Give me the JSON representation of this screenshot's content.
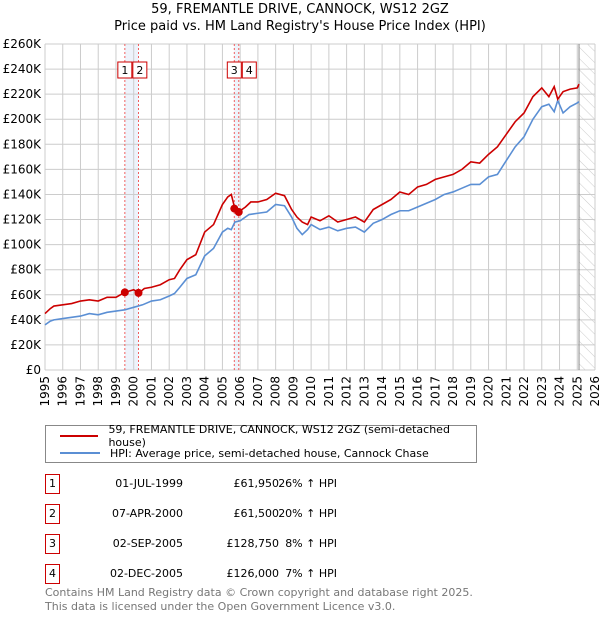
{
  "title": "59, FREMANTLE DRIVE, CANNOCK, WS12 2GZ",
  "subtitle": "Price paid vs. HM Land Registry's House Price Index (HPI)",
  "chart_data": {
    "type": "line",
    "title": "59, FREMANTLE DRIVE, CANNOCK, WS12 2GZ — Price paid vs. HM Land Registry's House Price Index (HPI)",
    "xlim": [
      1995,
      2026
    ],
    "ylim": [
      0,
      260000
    ],
    "x_ticks": [
      "1995",
      "1996",
      "1997",
      "1998",
      "1999",
      "2000",
      "2001",
      "2002",
      "2003",
      "2004",
      "2005",
      "2006",
      "2007",
      "2008",
      "2009",
      "2010",
      "2011",
      "2012",
      "2013",
      "2014",
      "2015",
      "2016",
      "2017",
      "2018",
      "2019",
      "2020",
      "2021",
      "2022",
      "2023",
      "2024",
      "2025",
      "2026"
    ],
    "y_ticks": [
      "£0",
      "£20K",
      "£40K",
      "£60K",
      "£80K",
      "£100K",
      "£120K",
      "£140K",
      "£160K",
      "£180K",
      "£200K",
      "£220K",
      "£240K",
      "£260K"
    ],
    "grid": true,
    "forecast_from": 2025.1,
    "series": [
      {
        "name": "59, FREMANTLE DRIVE, CANNOCK, WS12 2GZ (semi-detached house)",
        "color": "#cc0000",
        "x": [
          1995,
          1995.3,
          1995.5,
          1996,
          1996.5,
          1997,
          1997.5,
          1998,
          1998.5,
          1999,
          1999.5,
          2000,
          2000.3,
          2000.6,
          2001,
          2001.5,
          2002,
          2002.3,
          2002.6,
          2003,
          2003.5,
          2004,
          2004.5,
          2005,
          2005.3,
          2005.5,
          2005.7,
          2005.9,
          2006.3,
          2006.6,
          2007,
          2007.5,
          2008,
          2008.5,
          2008.9,
          2009.2,
          2009.5,
          2009.8,
          2010,
          2010.5,
          2011,
          2011.5,
          2012,
          2012.5,
          2013,
          2013.5,
          2014,
          2014.5,
          2015,
          2015.5,
          2016,
          2016.5,
          2017,
          2017.5,
          2018,
          2018.5,
          2019,
          2019.5,
          2020,
          2020.5,
          2021,
          2021.5,
          2022,
          2022.5,
          2023,
          2023.4,
          2023.7,
          2023.9,
          2024.2,
          2024.6,
          2025,
          2025.1
        ],
        "y": [
          45000,
          49000,
          51000,
          52000,
          53000,
          55000,
          56000,
          55000,
          58000,
          58000,
          62000,
          64000,
          61500,
          65000,
          66000,
          68000,
          72000,
          73000,
          80000,
          88000,
          92000,
          110000,
          116000,
          132000,
          138000,
          140000,
          128750,
          126000,
          130000,
          134000,
          134000,
          136000,
          141000,
          139000,
          128000,
          122000,
          118000,
          116000,
          122000,
          119000,
          123000,
          118000,
          120000,
          122000,
          118000,
          128000,
          132000,
          136000,
          142000,
          140000,
          146000,
          148000,
          152000,
          154000,
          156000,
          160000,
          166000,
          165000,
          172000,
          178000,
          188000,
          198000,
          205000,
          218000,
          225000,
          218000,
          226000,
          216000,
          222000,
          224000,
          225000,
          228000
        ]
      },
      {
        "name": "HPI: Average price, semi-detached house, Cannock Chase",
        "color": "#5b8fd4",
        "x": [
          1995,
          1995.3,
          1995.5,
          1996,
          1996.5,
          1997,
          1997.5,
          1998,
          1998.5,
          1999,
          1999.5,
          2000,
          2000.5,
          2001,
          2001.5,
          2002,
          2002.3,
          2002.6,
          2003,
          2003.5,
          2004,
          2004.5,
          2005,
          2005.3,
          2005.5,
          2005.7,
          2006,
          2006.5,
          2007,
          2007.5,
          2008,
          2008.5,
          2008.9,
          2009.2,
          2009.5,
          2009.8,
          2010,
          2010.5,
          2011,
          2011.5,
          2012,
          2012.5,
          2013,
          2013.5,
          2014,
          2014.5,
          2015,
          2015.5,
          2016,
          2016.5,
          2017,
          2017.5,
          2018,
          2018.5,
          2019,
          2019.5,
          2020,
          2020.5,
          2021,
          2021.5,
          2022,
          2022.5,
          2023,
          2023.4,
          2023.7,
          2023.9,
          2024.2,
          2024.6,
          2025,
          2025.1
        ],
        "y": [
          36000,
          39000,
          40000,
          41000,
          42000,
          43000,
          45000,
          44000,
          46000,
          47000,
          48000,
          50000,
          52000,
          55000,
          56000,
          59000,
          61000,
          66000,
          73000,
          76000,
          91000,
          97000,
          110000,
          113000,
          112000,
          118000,
          119000,
          124000,
          125000,
          126000,
          132000,
          131000,
          122000,
          113000,
          108000,
          112000,
          116000,
          112000,
          114000,
          111000,
          113000,
          114000,
          110000,
          117000,
          120000,
          124000,
          127000,
          127000,
          130000,
          133000,
          136000,
          140000,
          142000,
          145000,
          148000,
          148000,
          154000,
          156000,
          167000,
          178000,
          186000,
          200000,
          210000,
          212000,
          206000,
          215000,
          205000,
          210000,
          213000,
          214000
        ]
      }
    ],
    "sales": [
      {
        "label": "1",
        "x": 1999.5,
        "price": 61950,
        "date": "01-JUL-1999",
        "price_text": "£61,950",
        "hpi": "26% ↑ HPI"
      },
      {
        "label": "2",
        "x": 2000.27,
        "price": 61500,
        "date": "07-APR-2000",
        "price_text": "£61,500",
        "hpi": "20% ↑ HPI"
      },
      {
        "label": "3",
        "x": 2005.67,
        "price": 128750,
        "date": "02-SEP-2005",
        "price_text": "£128,750",
        "hpi": "8% ↑ HPI"
      },
      {
        "label": "4",
        "x": 2005.92,
        "price": 126000,
        "date": "02-DEC-2005",
        "price_text": "£126,000",
        "hpi": "7% ↑ HPI"
      }
    ]
  },
  "footer": {
    "line1": "Contains HM Land Registry data © Crown copyright and database right 2025.",
    "line2": "This data is licensed under the Open Government Licence v3.0."
  }
}
